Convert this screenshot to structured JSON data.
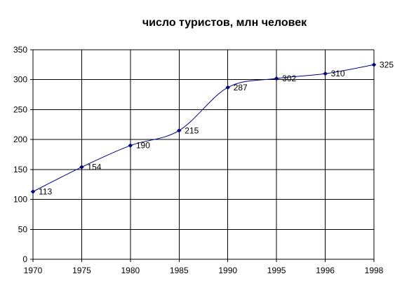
{
  "chart_data": {
    "type": "line",
    "title": "число туристов, млн человек",
    "xlabel": "",
    "ylabel": "",
    "categories": [
      "1970",
      "1975",
      "1980",
      "1985",
      "1990",
      "1995",
      "1996",
      "1998"
    ],
    "series": [
      {
        "values": [
          113,
          154,
          190,
          215,
          287,
          302,
          310,
          325
        ],
        "data_labels": [
          "113",
          "154",
          "190",
          "215",
          "287",
          "302",
          "310",
          "325"
        ]
      }
    ],
    "ylim": [
      0,
      350
    ],
    "y_ticks": [
      "0",
      "50",
      "100",
      "150",
      "200",
      "250",
      "300",
      "350"
    ],
    "grid": true,
    "legend": "none",
    "colors": {
      "line": "#000080",
      "grid": "#000000",
      "axis": "#000000"
    }
  }
}
